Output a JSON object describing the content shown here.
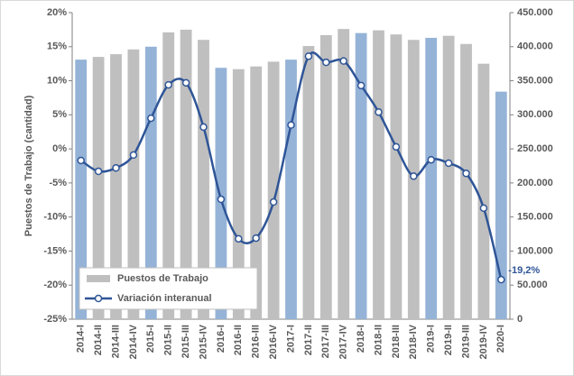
{
  "chart_data": {
    "type": "bar-line",
    "y_axis_label": "Puestos de Trabajo (cantidad)",
    "categories": [
      "2014-I",
      "2014-II",
      "2014-III",
      "2014-IV",
      "2015-I",
      "2015-II",
      "2015-III",
      "2015-IV",
      "2016-I",
      "2016-II",
      "2016-III",
      "2016-IV",
      "2017-I",
      "2017-II",
      "2017-III",
      "2017-IV",
      "2018-I",
      "2018-II",
      "2018-III",
      "2018-IV",
      "2019-I",
      "2019-II",
      "2019-III",
      "2019-IV",
      "2020-I"
    ],
    "series": [
      {
        "name": "Puestos de Trabajo",
        "type": "bar",
        "axis": "y2",
        "color": "#bfbfbf",
        "colors": [
          "#95b3d7",
          "#bfbfbf",
          "#bfbfbf",
          "#bfbfbf",
          "#95b3d7",
          "#bfbfbf",
          "#bfbfbf",
          "#bfbfbf",
          "#95b3d7",
          "#bfbfbf",
          "#bfbfbf",
          "#bfbfbf",
          "#95b3d7",
          "#bfbfbf",
          "#bfbfbf",
          "#bfbfbf",
          "#95b3d7",
          "#bfbfbf",
          "#bfbfbf",
          "#bfbfbf",
          "#95b3d7",
          "#bfbfbf",
          "#bfbfbf",
          "#bfbfbf",
          "#95b3d7"
        ],
        "values": [
          381000,
          385000,
          389000,
          396000,
          400000,
          421000,
          425000,
          410000,
          369000,
          367000,
          371000,
          378000,
          381000,
          401000,
          417000,
          426000,
          420000,
          424000,
          418000,
          410000,
          413000,
          416000,
          404000,
          375000,
          334000
        ]
      },
      {
        "name": "Variación interanual",
        "type": "line",
        "axis": "y",
        "color": "#2f5597",
        "values": [
          -1.7,
          -3.3,
          -2.8,
          -0.9,
          4.5,
          9.4,
          9.7,
          3.2,
          -7.4,
          -13.2,
          -13.1,
          -7.8,
          3.5,
          13.6,
          12.7,
          12.9,
          9.3,
          5.4,
          0.3,
          -4.0,
          -1.6,
          -2.1,
          -3.6,
          -8.7,
          -19.2
        ],
        "value_labels": [
          null,
          null,
          null,
          null,
          null,
          null,
          null,
          null,
          null,
          null,
          null,
          null,
          null,
          null,
          null,
          null,
          null,
          null,
          null,
          null,
          null,
          null,
          null,
          null,
          "-19,2%"
        ]
      }
    ],
    "ylim": [
      -25,
      20
    ],
    "yticks": [
      {
        "value": -25,
        "label": "-25%"
      },
      {
        "value": -20,
        "label": "-20%"
      },
      {
        "value": -15,
        "label": "-15%"
      },
      {
        "value": -10,
        "label": "-10%"
      },
      {
        "value": -5,
        "label": "-5%"
      },
      {
        "value": 0,
        "label": "0%"
      },
      {
        "value": 5,
        "label": "5%"
      },
      {
        "value": 10,
        "label": "10%"
      },
      {
        "value": 15,
        "label": "15%"
      },
      {
        "value": 20,
        "label": "20%"
      }
    ],
    "y2lim": [
      0,
      450000
    ],
    "y2ticks": [
      0,
      {
        "value": 50000,
        "label": "50.000"
      },
      {
        "value": 100000,
        "label": "100.000"
      },
      {
        "value": 150000,
        "label": "150.000"
      },
      {
        "value": 200000,
        "label": "200.000"
      },
      {
        "value": 250000,
        "label": "250.000"
      },
      {
        "value": 300000,
        "label": "300.000"
      },
      {
        "value": 350000,
        "label": "350.000"
      },
      {
        "value": 400000,
        "label": "400.000"
      },
      {
        "value": 450000,
        "label": "450.000"
      }
    ],
    "legend": "bottom-left"
  }
}
